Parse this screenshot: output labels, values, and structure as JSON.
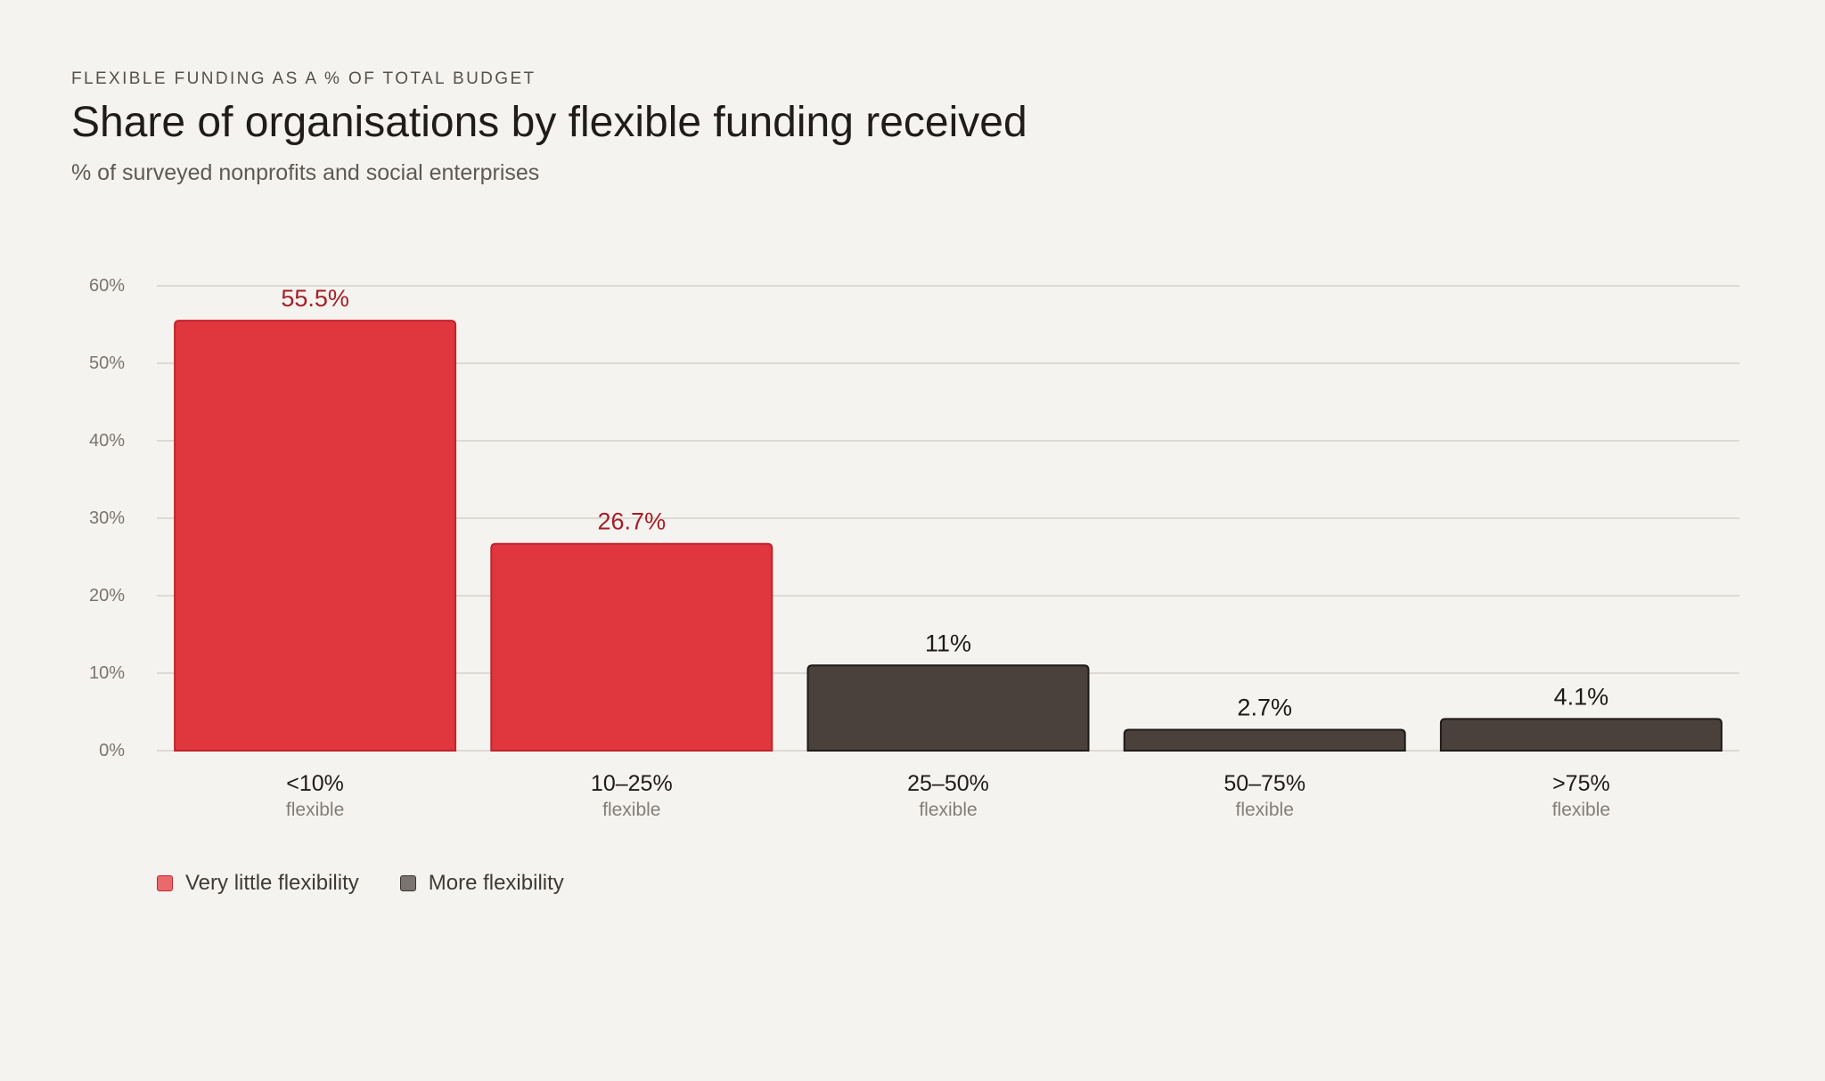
{
  "header": {
    "eyebrow": "FLEXIBLE FUNDING AS A % OF TOTAL BUDGET",
    "title": "Share of organisations by flexible funding received",
    "subtitle": "% of surveyed nonprofits and social enterprises"
  },
  "legend": {
    "items": [
      {
        "label": "Very little flexibility",
        "color": "#e9696d",
        "border": "#c2272e"
      },
      {
        "label": "More flexibility",
        "color": "#7a7370",
        "border": "#3a3432"
      }
    ]
  },
  "colors": {
    "red_fill": "#e0363d",
    "red_stroke": "#c0232b",
    "red_label": "#a51e26",
    "dark_fill": "#4a403c",
    "dark_stroke": "#1f1a18",
    "dark_label": "#1d1a18",
    "grid": "#cfcbc6",
    "tick": "#7a7470",
    "category": "#1f1b19",
    "sublabel": "#837d78"
  },
  "chart_data": {
    "type": "bar",
    "title": "Share of organisations by flexible funding received",
    "categories": [
      "<10%",
      "10–25%",
      "25–50%",
      "50–75%",
      ">75%"
    ],
    "category_sublabel": "flexible",
    "values": [
      55.5,
      26.7,
      11,
      2.7,
      4.1
    ],
    "value_labels": [
      "55.5%",
      "26.7%",
      "11%",
      "2.7%",
      "4.1%"
    ],
    "groups": [
      "Very little flexibility",
      "Very little flexibility",
      "More flexibility",
      "More flexibility",
      "More flexibility"
    ],
    "ylim": [
      0,
      60
    ],
    "yticks": [
      0,
      10,
      20,
      30,
      40,
      50,
      60
    ],
    "ytick_labels": [
      "0%",
      "10%",
      "20%",
      "30%",
      "40%",
      "50%",
      "60%"
    ],
    "grid": true,
    "legend_position": "bottom-left"
  }
}
